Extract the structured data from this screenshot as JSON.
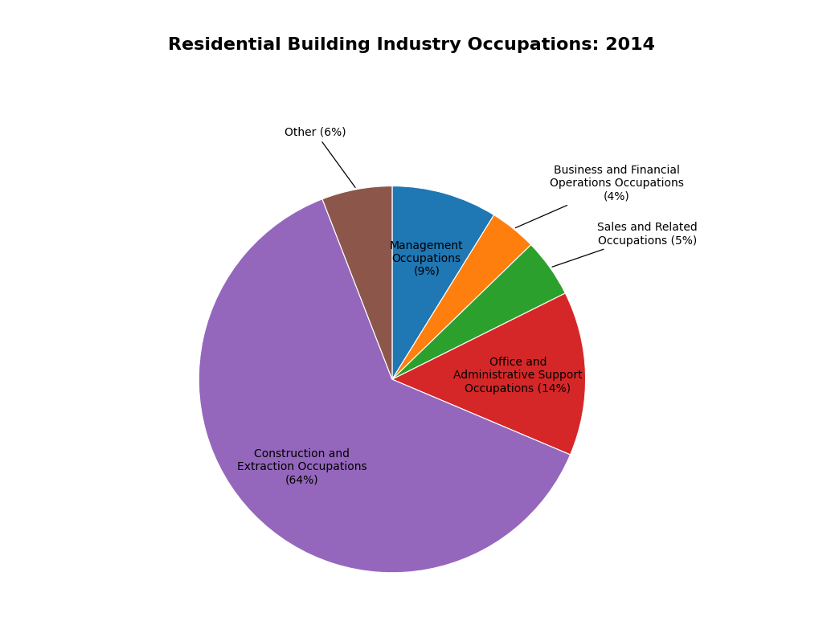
{
  "chart_data": {
    "type": "pie",
    "title": "Residential Building Industry Occupations: 2014",
    "categories": [
      "Management\nOccupations\n(9%)",
      "Business and Financial\nOperations Occupations\n(4%)",
      "Sales and Related\nOccupations (5%)",
      "Office and\nAdministrative Support\nOccupations (14%)",
      "Construction and\nExtraction Occupations\n(64%)",
      "Other (6%)"
    ],
    "values": [
      9,
      4,
      5,
      14,
      64,
      6
    ]
  }
}
